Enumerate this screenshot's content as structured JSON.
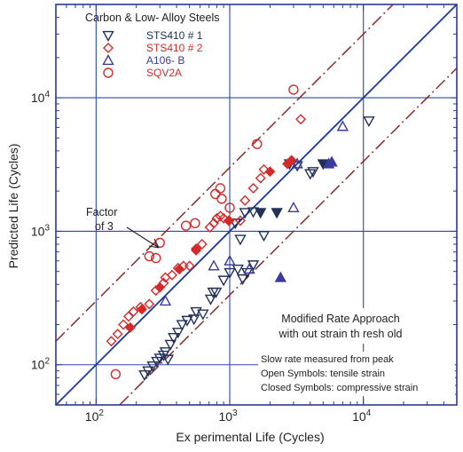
{
  "chart_data": {
    "type": "scatter",
    "xscale": "log",
    "yscale": "log",
    "xlim": [
      50,
      50000
    ],
    "ylim": [
      50,
      50000
    ],
    "grid": true,
    "xlabel": "Ex perimental Life (Cycles)",
    "ylabel": "Predicted Life (Cycles)",
    "x_ticks": [
      {
        "value": 100,
        "base": "10",
        "exp": "2"
      },
      {
        "value": 1000,
        "base": "10",
        "exp": "3"
      },
      {
        "value": 10000,
        "base": "10",
        "exp": "4"
      }
    ],
    "y_ticks": [
      {
        "value": 100,
        "base": "10",
        "exp": "2"
      },
      {
        "value": 1000,
        "base": "10",
        "exp": "3"
      },
      {
        "value": 10000,
        "base": "10",
        "exp": "4"
      }
    ],
    "legend_title": "Carbon & Low- Alloy Steels",
    "legend_placement": "top-left",
    "colors": {
      "blue": "#1a3a9c",
      "red": "#d42a2a",
      "navy": "#22305a",
      "axis": "#2a3a8a",
      "factor_line": "#8a2a2a"
    },
    "series": [
      {
        "name": "STS410 # 1",
        "marker": "triangle-down",
        "color": "#22305a",
        "points": [
          [
            230,
            84
          ],
          [
            245,
            90
          ],
          [
            265,
            98
          ],
          [
            285,
            106
          ],
          [
            300,
            112
          ],
          [
            320,
            118
          ],
          [
            330,
            125
          ],
          [
            345,
            110
          ],
          [
            360,
            142
          ],
          [
            380,
            160
          ],
          [
            410,
            175
          ],
          [
            440,
            200
          ],
          [
            480,
            215
          ],
          [
            540,
            220
          ],
          [
            560,
            250
          ],
          [
            630,
            240
          ],
          [
            720,
            310
          ],
          [
            790,
            350
          ],
          [
            750,
            350
          ],
          [
            900,
            430
          ],
          [
            1000,
            490
          ],
          [
            1150,
            520
          ],
          [
            1250,
            440
          ],
          [
            1350,
            490
          ],
          [
            1500,
            560
          ],
          [
            1100,
            1150
          ],
          [
            1300,
            1380
          ],
          [
            1500,
            1400
          ],
          [
            1700,
            1380
          ],
          [
            2250,
            1380
          ],
          [
            1200,
            870
          ],
          [
            1800,
            930
          ],
          [
            2800,
            3200
          ],
          [
            3200,
            3100
          ],
          [
            4000,
            2700
          ],
          [
            4200,
            2800
          ],
          [
            5000,
            3200
          ],
          [
            11000,
            6700
          ]
        ],
        "open": [
          true,
          true,
          true,
          true,
          true,
          true,
          true,
          true,
          true,
          true,
          true,
          true,
          true,
          true,
          true,
          true,
          true,
          true,
          true,
          true,
          true,
          true,
          true,
          true,
          true,
          true,
          true,
          true,
          false,
          false,
          true,
          true,
          false,
          true,
          true,
          true,
          false,
          true
        ]
      },
      {
        "name": "STS410 # 2",
        "marker": "diamond",
        "color": "#d42a2a",
        "points": [
          [
            130,
            150
          ],
          [
            145,
            170
          ],
          [
            160,
            200
          ],
          [
            175,
            230
          ],
          [
            190,
            250
          ],
          [
            215,
            270
          ],
          [
            250,
            285
          ],
          [
            280,
            360
          ],
          [
            320,
            410
          ],
          [
            330,
            450
          ],
          [
            370,
            470
          ],
          [
            410,
            530
          ],
          [
            450,
            550
          ],
          [
            500,
            550
          ],
          [
            560,
            740
          ],
          [
            620,
            800
          ],
          [
            710,
            1070
          ],
          [
            760,
            1150
          ],
          [
            800,
            1250
          ],
          [
            850,
            1300
          ],
          [
            900,
            1250
          ],
          [
            990,
            1200
          ],
          [
            1200,
            1200
          ],
          [
            1300,
            1700
          ],
          [
            1500,
            2100
          ],
          [
            1700,
            2500
          ],
          [
            1800,
            2900
          ],
          [
            2000,
            2800
          ],
          [
            2700,
            3200
          ],
          [
            2900,
            3400
          ],
          [
            180,
            190
          ],
          [
            220,
            260
          ],
          [
            300,
            380
          ],
          [
            420,
            520
          ],
          [
            560,
            720
          ],
          [
            980,
            1200
          ],
          [
            3400,
            6900
          ]
        ],
        "open": [
          true,
          true,
          true,
          true,
          true,
          true,
          true,
          true,
          true,
          true,
          true,
          true,
          true,
          true,
          true,
          true,
          true,
          true,
          true,
          true,
          true,
          true,
          true,
          true,
          true,
          true,
          true,
          false,
          false,
          false,
          false,
          false,
          false,
          false,
          false,
          false,
          true
        ]
      },
      {
        "name": "A106- B",
        "marker": "triangle-up",
        "color": "#3a3aa0",
        "points": [
          [
            330,
            300
          ],
          [
            760,
            550
          ],
          [
            1000,
            600
          ],
          [
            1400,
            520
          ],
          [
            2400,
            450
          ],
          [
            3000,
            1500
          ],
          [
            3200,
            3200
          ],
          [
            5500,
            3200
          ],
          [
            5800,
            3300
          ],
          [
            7000,
            6100
          ]
        ],
        "open": [
          true,
          true,
          true,
          true,
          false,
          true,
          true,
          false,
          false,
          true
        ]
      },
      {
        "name": "SQV2A",
        "marker": "circle",
        "color": "#d42a2a",
        "points": [
          [
            140,
            85
          ],
          [
            250,
            650
          ],
          [
            280,
            630
          ],
          [
            300,
            820
          ],
          [
            470,
            1100
          ],
          [
            550,
            1150
          ],
          [
            780,
            1900
          ],
          [
            850,
            2100
          ],
          [
            870,
            1750
          ],
          [
            1000,
            1500
          ],
          [
            1600,
            4500
          ],
          [
            3000,
            11500
          ]
        ],
        "open": [
          true,
          true,
          true,
          true,
          true,
          true,
          true,
          true,
          true,
          true,
          true,
          true
        ]
      }
    ],
    "lines": [
      {
        "name": "equality",
        "style": "solid",
        "color": "#1a3a9c",
        "points": [
          [
            50,
            50
          ],
          [
            50000,
            50000
          ]
        ]
      },
      {
        "name": "factor-upper",
        "style": "dash-dot",
        "color": "#8a2a2a",
        "points": [
          [
            50,
            150
          ],
          [
            16667,
            50000
          ]
        ]
      },
      {
        "name": "factor-lower",
        "style": "dash-dot",
        "color": "#8a2a2a",
        "points": [
          [
            150,
            50
          ],
          [
            50000,
            16667
          ]
        ]
      }
    ],
    "annotations": {
      "factor_label_1": "Factor",
      "factor_label_2": "of 3",
      "method_1": "Modified Rate Approach",
      "method_2": "with out strain th resh old",
      "note_1": "Slow rate measured from peak",
      "note_2": "Open Symbols:  tensile strain",
      "note_3": "Closed Symbols:  compressive strain"
    }
  }
}
